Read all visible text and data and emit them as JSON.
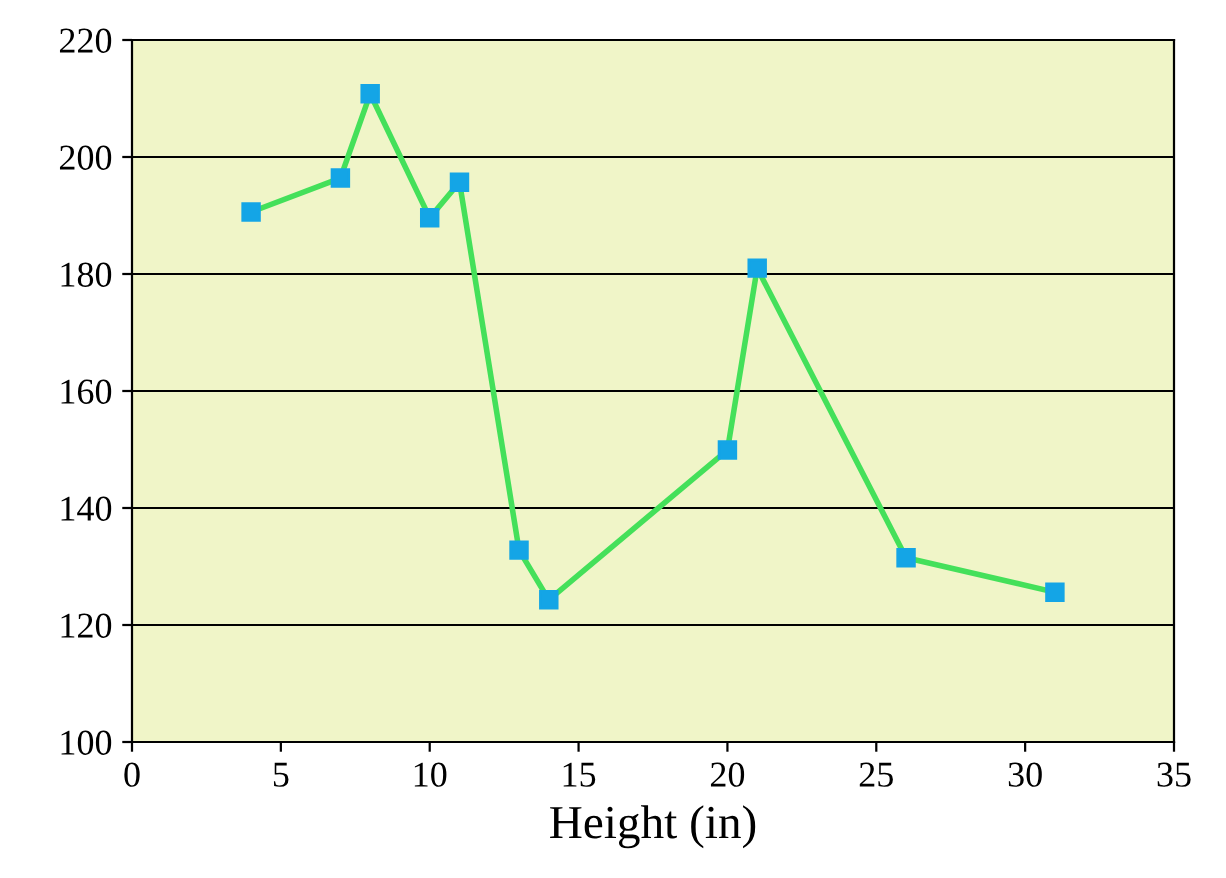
{
  "chart_data": {
    "type": "line",
    "xlabel": "Height (in)",
    "x": [
      4,
      7,
      8,
      10,
      11,
      13,
      14,
      20,
      21,
      26,
      31
    ],
    "series": [
      {
        "color": "#44e05a",
        "values": [
          190.6,
          196.4,
          210.8,
          189.6,
          195.7,
          132.8,
          124.3,
          149.9,
          181.0,
          131.5,
          125.6
        ]
      }
    ],
    "marker": "square",
    "line_style": "solid",
    "grid": "y",
    "legend": false,
    "xlim": [
      0,
      35
    ],
    "xticks": [
      0,
      5,
      10,
      15,
      20,
      25,
      30,
      35
    ],
    "ylim": [
      100,
      220
    ],
    "yticks": [
      100,
      120,
      140,
      160,
      180,
      200,
      220
    ]
  }
}
